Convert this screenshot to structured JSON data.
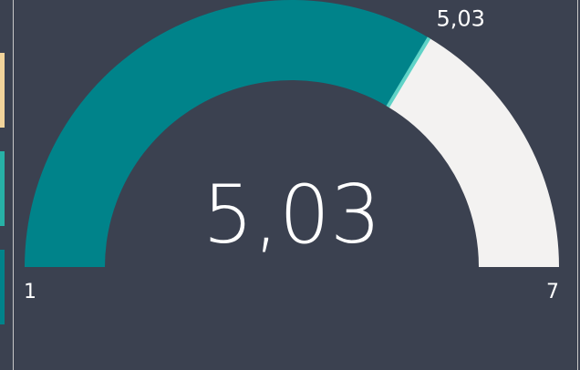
{
  "chart_data": {
    "type": "gauge",
    "values": [
      5.03
    ],
    "value_labels": [
      "5,03"
    ],
    "target": 5.03,
    "target_label": "5,03",
    "ylim": [
      1,
      7
    ],
    "yticks": [
      1,
      7
    ],
    "color": "#00838a",
    "track_color": "#f3f2f1",
    "target_color": "#5fd3c7"
  }
}
